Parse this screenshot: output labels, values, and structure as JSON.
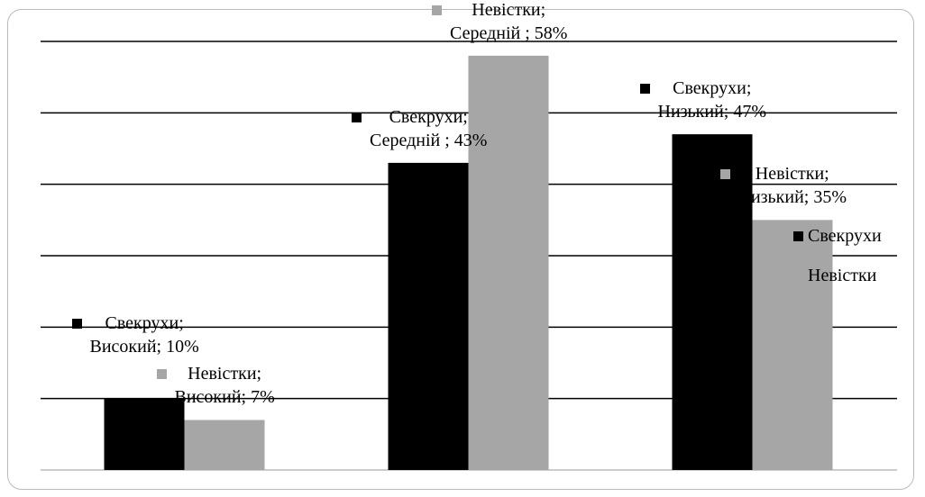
{
  "chart_data": {
    "type": "bar",
    "categories": [
      "Високий",
      "Середній",
      "Низький"
    ],
    "series": [
      {
        "name": "Свекрухи",
        "color": "#000000",
        "values": [
          10,
          43,
          47
        ],
        "value_labels": [
          "Свекрухи;\nВисокий; 10%",
          "Свекрухи;\nСередній ; 43%",
          "Свекрухи;\nНизький; 47%"
        ]
      },
      {
        "name": "Невістки",
        "color": "#a6a6a6",
        "values": [
          7,
          58,
          35
        ],
        "value_labels": [
          "Невістки;\nВисокий; 7%",
          "Невістки;\nСередній ; 58%",
          "Невістки;\nНизький; 35%"
        ]
      }
    ],
    "ylim": [
      0,
      60
    ],
    "yticks": [
      0,
      10,
      20,
      30,
      40,
      50,
      60
    ],
    "grid": true,
    "legend": "right"
  }
}
